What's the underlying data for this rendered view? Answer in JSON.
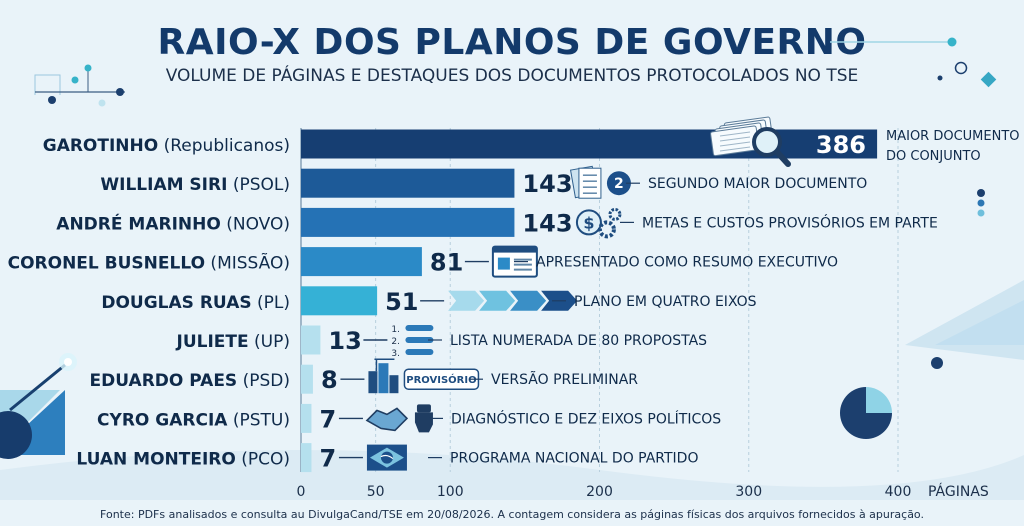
{
  "title": "RAIO-X DOS PLANOS DE GOVERNO",
  "subtitle": "VOLUME DE PÁGINAS E DESTAQUES DOS DOCUMENTOS PROTOCOLADOS NO TSE",
  "footer": "Fonte: PDFs analisados e consulta au DivulgaCand/TSE em 20/08/2026. A contagem considera as páginas físicas dos arquivos fornecidos à apuração.",
  "colors": {
    "title": "#133a6b",
    "background": "#e9f3f9"
  },
  "chart_data": {
    "type": "bar",
    "orientation": "horizontal",
    "xlabel": "PÁGINAS",
    "xlim": [
      0,
      400
    ],
    "xticks": [
      0,
      50,
      100,
      200,
      300,
      400
    ],
    "grid": true,
    "bars": [
      {
        "name": "GAROTINHO",
        "party": "(Republicanos)",
        "value": 386,
        "value_label": "386",
        "note": [
          "MAIOR DOCUMENTO",
          "DO CONJUNTO"
        ],
        "icon": "documents-magnifier-icon",
        "color": "#163e72"
      },
      {
        "name": "WILLIAM SIRI",
        "party": "(PSOL)",
        "value": 143,
        "value_label": "143",
        "note": [
          "SEGUNDO MAIOR DOCUMENTO"
        ],
        "icon": "document-number-two-icon",
        "icon_text": "2",
        "color": "#1d5a98"
      },
      {
        "name": "ANDRÉ MARINHO",
        "party": "(NOVO)",
        "value": 143,
        "value_label": "143",
        "note": [
          "METAS E CUSTOS PROVISÓRIOS EM PARTE"
        ],
        "icon": "dollar-gears-icon",
        "icon_text": "$",
        "color": "#2572b5"
      },
      {
        "name": "CORONEL BUSNELLO",
        "party": "(MISSÃO)",
        "value": 81,
        "value_label": "81",
        "note": [
          "APRESENTADO COMO RESUMO EXECUTIVO"
        ],
        "icon": "browser-window-icon",
        "color": "#2b8ac7"
      },
      {
        "name": "DOUGLAS RUAS",
        "party": "(PL)",
        "value": 51,
        "value_label": "51",
        "note": [
          "PLANO EM QUATRO EIXOS"
        ],
        "icon": "four-chevrons-icon",
        "color": "#35b1d6"
      },
      {
        "name": "JULIETE",
        "party": "(UP)",
        "value": 13,
        "value_label": "13",
        "note": [
          "LISTA NUMERADA DE 80 PROPOSTAS"
        ],
        "icon": "numbered-list-icon",
        "icon_items": [
          "1.",
          "2.",
          "3."
        ],
        "color": "#b5e0ee"
      },
      {
        "name": "EDUARDO PAES",
        "party": "(PSD)",
        "value": 8,
        "value_label": "8",
        "note": [
          "VERSÃO PRELIMINAR"
        ],
        "icon": "city-buildings-icon",
        "badge": "PROVISÓRIO",
        "color": "#b5e0ee"
      },
      {
        "name": "CYRO GARCIA",
        "party": "(PSTU)",
        "value": 7,
        "value_label": "7",
        "note": [
          "DIAGNÓSTICO E DEZ EIXOS POLÍTICOS"
        ],
        "icon": "handshake-fist-icon",
        "color": "#b5e0ee"
      },
      {
        "name": "LUAN MONTEIRO",
        "party": "(PCO)",
        "value": 7,
        "value_label": "7",
        "note": [
          "PROGRAMA NACIONAL DO PARTIDO"
        ],
        "icon": "brazil-flag-icon",
        "color": "#b5e0ee"
      }
    ]
  }
}
